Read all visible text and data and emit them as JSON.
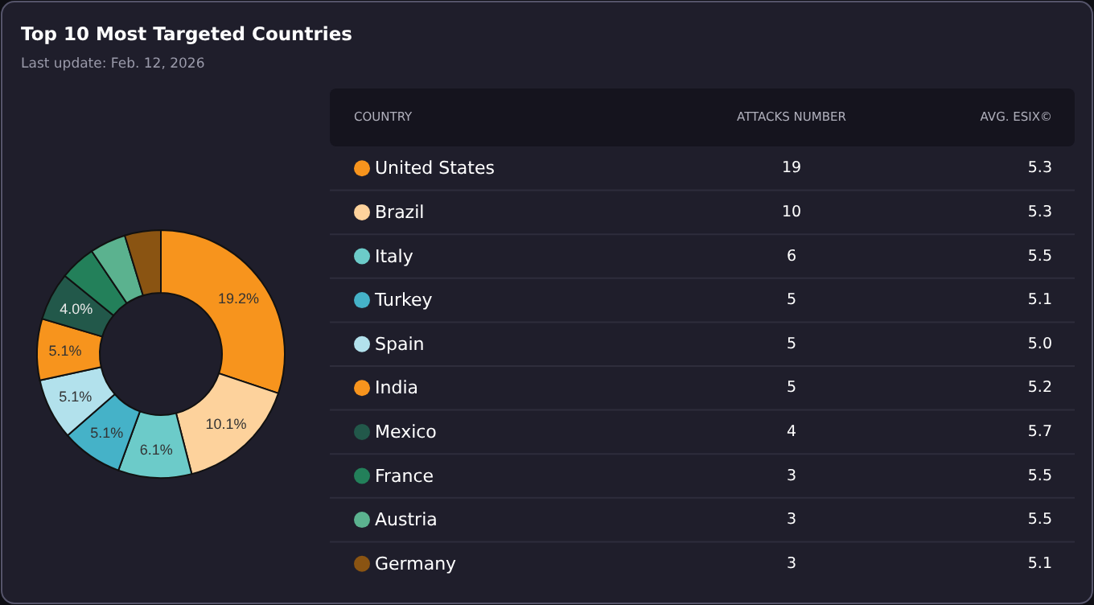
{
  "chart_data": [
    {
      "type": "donut",
      "title": "Top 10 Most Targeted Countries",
      "subtitle": "Last update: Feb. 12, 2026",
      "categories": [
        null,
        null,
        null,
        null,
        null,
        null,
        null,
        null,
        null,
        null
      ],
      "values": [
        19.2,
        10.1,
        6.1,
        5.1,
        5.1,
        5.1,
        4.0,
        3.0,
        3.0,
        3.0
      ],
      "value_labels": [
        "19.2%",
        "10.1%",
        "6.1%",
        "5.1%",
        "5.1%",
        "5.1%",
        "4.0%",
        null,
        null,
        null
      ],
      "colors": [
        "#f7941d",
        "#fdd29c",
        "#6ccbc9",
        "#45b2c8",
        "#b2e1ec",
        "#f7941d",
        "#22584a",
        "#23805a",
        "#5bb28f",
        "#8a5412"
      ]
    },
    {
      "type": "other",
      "xlabel": "COUNTRY",
      "data_labels": true,
      "categories": [
        "United States",
        "Brazil",
        "Italy",
        "Turkey",
        "Spain",
        "India",
        "Mexico",
        "France",
        "Austria",
        "Germany"
      ],
      "colors": [
        "#f7941d",
        "#fdd29c",
        "#6ccbc9",
        "#45b2c8",
        "#b2e1ec",
        "#f7941d",
        "#22584a",
        "#23805a",
        "#5bb28f",
        "#8a5412"
      ],
      "series": [
        {
          "name": "ATTACKS NUMBER",
          "values": [
            19,
            10,
            6,
            5,
            5,
            5,
            4,
            3,
            3,
            3
          ]
        },
        {
          "name": "AVG. ESIX©",
          "values": [
            5.3,
            5.3,
            5.5,
            5.1,
            5.0,
            5.2,
            5.7,
            5.5,
            5.5,
            5.1
          ],
          "value_labels": [
            "5.3",
            "5.3",
            "5.5",
            "5.1",
            "5.0",
            "5.2",
            "5.7",
            "5.5",
            "5.5",
            "5.1"
          ]
        }
      ]
    }
  ]
}
